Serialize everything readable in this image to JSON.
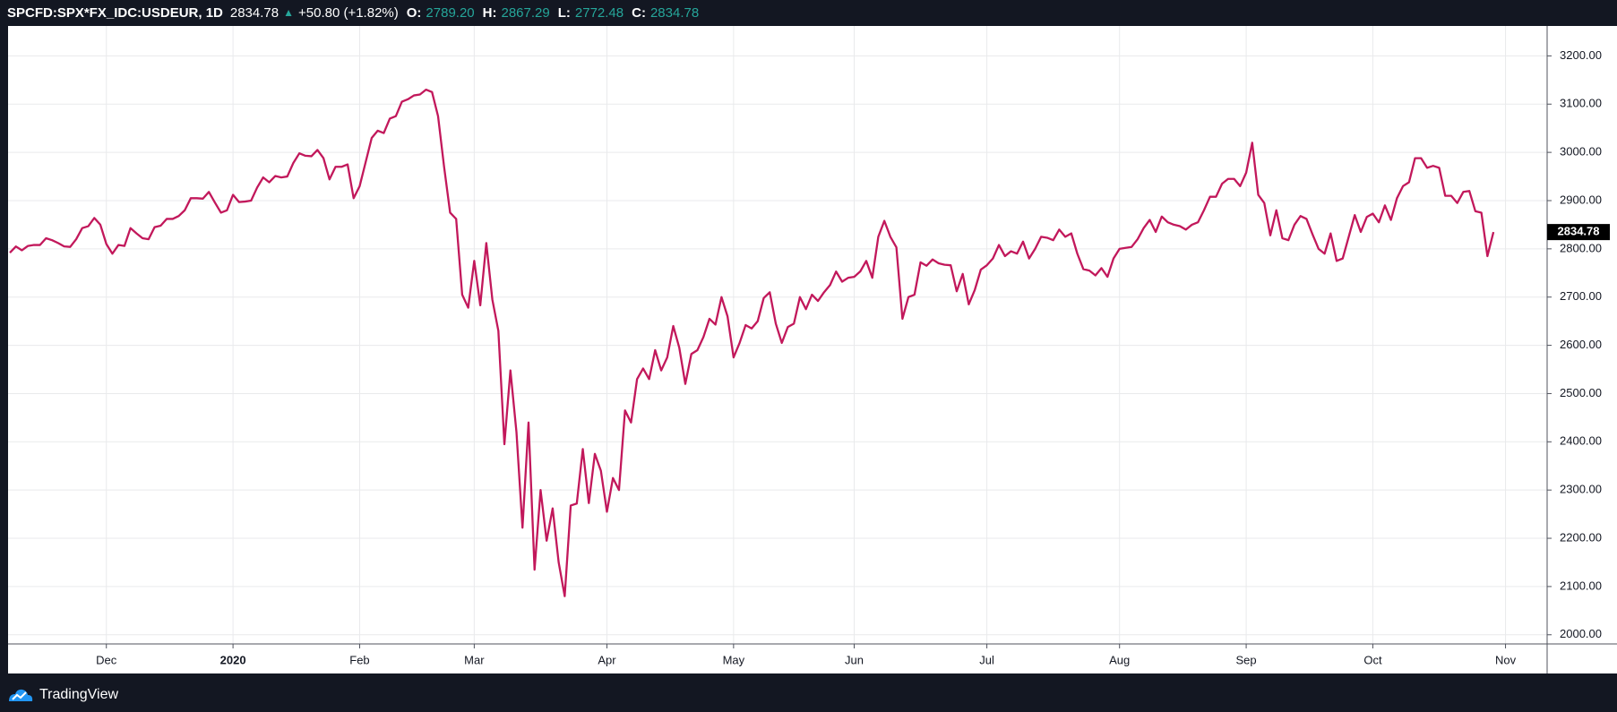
{
  "header": {
    "symbol": "SPCFD:SPX*FX_IDC:USDEUR, 1D",
    "last": "2834.78",
    "change": "+50.80 (+1.82%)",
    "open_label": "O:",
    "open": "2789.20",
    "high_label": "H:",
    "high": "2867.29",
    "low_label": "L:",
    "low": "2772.48",
    "close_label": "C:",
    "close": "2834.78"
  },
  "chart_data": {
    "type": "line",
    "color": "#c2185b",
    "grid": true,
    "values": [
      2792,
      2805,
      2797,
      2806,
      2808,
      2808,
      2822,
      2818,
      2812,
      2805,
      2804,
      2820,
      2843,
      2847,
      2864,
      2850,
      2810,
      2790,
      2808,
      2806,
      2843,
      2832,
      2822,
      2820,
      2845,
      2848,
      2862,
      2862,
      2868,
      2880,
      2905,
      2905,
      2904,
      2918,
      2896,
      2875,
      2880,
      2912,
      2897,
      2898,
      2900,
      2927,
      2948,
      2938,
      2951,
      2948,
      2950,
      2978,
      2998,
      2993,
      2992,
      3005,
      2988,
      2944,
      2970,
      2970,
      2975,
      2905,
      2930,
      2980,
      3030,
      3045,
      3040,
      3070,
      3075,
      3105,
      3110,
      3118,
      3120,
      3130,
      3125,
      3075,
      2970,
      2875,
      2862,
      2705,
      2678,
      2775,
      2683,
      2812,
      2695,
      2630,
      2395,
      2548,
      2420,
      2222,
      2440,
      2135,
      2300,
      2195,
      2262,
      2150,
      2080,
      2268,
      2272,
      2385,
      2273,
      2375,
      2340,
      2255,
      2325,
      2300,
      2465,
      2440,
      2530,
      2552,
      2530,
      2590,
      2548,
      2575,
      2640,
      2595,
      2520,
      2582,
      2590,
      2617,
      2655,
      2643,
      2700,
      2660,
      2575,
      2605,
      2642,
      2635,
      2650,
      2698,
      2710,
      2645,
      2605,
      2638,
      2645,
      2700,
      2675,
      2705,
      2692,
      2710,
      2725,
      2753,
      2732,
      2740,
      2742,
      2753,
      2775,
      2740,
      2825,
      2858,
      2825,
      2803,
      2655,
      2700,
      2705,
      2772,
      2765,
      2778,
      2770,
      2767,
      2766,
      2712,
      2748,
      2685,
      2715,
      2757,
      2766,
      2780,
      2808,
      2785,
      2795,
      2790,
      2815,
      2780,
      2800,
      2825,
      2823,
      2818,
      2840,
      2825,
      2832,
      2790,
      2758,
      2755,
      2745,
      2760,
      2742,
      2780,
      2800,
      2802,
      2804,
      2820,
      2843,
      2860,
      2835,
      2867,
      2855,
      2850,
      2847,
      2840,
      2850,
      2855,
      2880,
      2908,
      2908,
      2935,
      2945,
      2945,
      2930,
      2958,
      3020,
      2912,
      2895,
      2828,
      2880,
      2822,
      2818,
      2850,
      2868,
      2862,
      2830,
      2800,
      2790,
      2832,
      2775,
      2780,
      2825,
      2870,
      2835,
      2866,
      2873,
      2855,
      2890,
      2860,
      2905,
      2930,
      2938,
      2988,
      2988,
      2968,
      2972,
      2968,
      2910,
      2910,
      2895,
      2918,
      2920,
      2878,
      2875,
      2785,
      2834.78
    ],
    "xlim": [
      -0.3,
      254.9
    ],
    "xticks": [
      {
        "value": 16,
        "label": "Dec"
      },
      {
        "value": 37,
        "label": "2020"
      },
      {
        "value": 58,
        "label": "Feb"
      },
      {
        "value": 77,
        "label": "Mar"
      },
      {
        "value": 99,
        "label": "Apr"
      },
      {
        "value": 120,
        "label": "May"
      },
      {
        "value": 140,
        "label": "Jun"
      },
      {
        "value": 162,
        "label": "Jul"
      },
      {
        "value": 184,
        "label": "Aug"
      },
      {
        "value": 205,
        "label": "Sep"
      },
      {
        "value": 226,
        "label": "Oct"
      },
      {
        "value": 248,
        "label": "Nov"
      }
    ],
    "ylim": [
      1981,
      3262
    ],
    "yticks": [
      {
        "value": 2000,
        "label": "2000.00"
      },
      {
        "value": 2100,
        "label": "2100.00"
      },
      {
        "value": 2200,
        "label": "2200.00"
      },
      {
        "value": 2300,
        "label": "2300.00"
      },
      {
        "value": 2400,
        "label": "2400.00"
      },
      {
        "value": 2500,
        "label": "2500.00"
      },
      {
        "value": 2600,
        "label": "2600.00"
      },
      {
        "value": 2700,
        "label": "2700.00"
      },
      {
        "value": 2800,
        "label": "2800.00"
      },
      {
        "value": 2900,
        "label": "2900.00"
      },
      {
        "value": 3000,
        "label": "3000.00"
      },
      {
        "value": 3100,
        "label": "3100.00"
      },
      {
        "value": 3200,
        "label": "3200.00"
      }
    ]
  },
  "footer": {
    "brand": "TradingView"
  }
}
